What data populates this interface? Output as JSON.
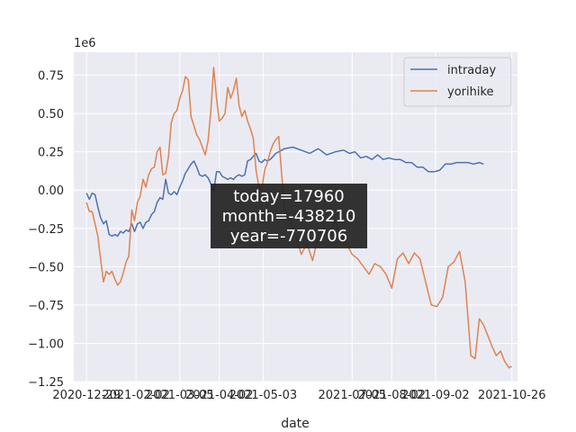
{
  "chart_data": {
    "type": "line",
    "xlabel": "date",
    "ylabel": "",
    "y_multiplier": "1e6",
    "grid": true,
    "legend_placement": "top-right",
    "xlim": [
      "2020-12-20",
      "2021-10-30"
    ],
    "ylim": [
      -1.25,
      0.9
    ],
    "x_ticks": [
      "2020-12-29",
      "2021-02-02",
      "2021-03-05",
      "2021-04-02",
      "2021-05-03",
      "2021-07-05",
      "2021-08-02",
      "2021-09-02",
      "2021-10-26"
    ],
    "x_tick_labels": [
      "2020-12-29",
      "2021-02-02",
      "2021-03-05",
      "2021-04-02",
      "2021-05-03",
      "2021-07-05",
      "2021-08-02",
      "2021-09-02",
      "2021-10-26"
    ],
    "y_ticks": [
      0.75,
      0.5,
      0.25,
      0.0,
      -0.25,
      -0.5,
      -0.75,
      -1.0,
      -1.25
    ],
    "y_tick_labels": [
      "0.75",
      "0.50",
      "0.25",
      "0.00",
      "−0.25",
      "−0.50",
      "−0.75",
      "−1.00",
      "−1.25"
    ],
    "annotation": [
      "today=17960",
      "month=-438210",
      "year=-770706"
    ],
    "series": [
      {
        "name": "intraday",
        "color": "#4c72b0",
        "points": [
          [
            "2020-12-29",
            -0.02
          ],
          [
            "2020-12-31",
            -0.06
          ],
          [
            "2021-01-02",
            -0.02
          ],
          [
            "2021-01-04",
            -0.03
          ],
          [
            "2021-01-06",
            -0.11
          ],
          [
            "2021-01-08",
            -0.18
          ],
          [
            "2021-01-10",
            -0.22
          ],
          [
            "2021-01-12",
            -0.2
          ],
          [
            "2021-01-14",
            -0.29
          ],
          [
            "2021-01-16",
            -0.3
          ],
          [
            "2021-01-18",
            -0.29
          ],
          [
            "2021-01-20",
            -0.3
          ],
          [
            "2021-01-22",
            -0.27
          ],
          [
            "2021-01-24",
            -0.28
          ],
          [
            "2021-01-26",
            -0.26
          ],
          [
            "2021-01-28",
            -0.27
          ],
          [
            "2021-01-30",
            -0.22
          ],
          [
            "2021-02-01",
            -0.27
          ],
          [
            "2021-02-03",
            -0.22
          ],
          [
            "2021-02-05",
            -0.21
          ],
          [
            "2021-02-07",
            -0.25
          ],
          [
            "2021-02-09",
            -0.21
          ],
          [
            "2021-02-11",
            -0.2
          ],
          [
            "2021-02-13",
            -0.16
          ],
          [
            "2021-02-15",
            -0.14
          ],
          [
            "2021-02-17",
            -0.08
          ],
          [
            "2021-02-19",
            -0.05
          ],
          [
            "2021-02-21",
            -0.06
          ],
          [
            "2021-02-23",
            0.07
          ],
          [
            "2021-02-25",
            -0.02
          ],
          [
            "2021-02-27",
            -0.03
          ],
          [
            "2021-03-01",
            -0.01
          ],
          [
            "2021-03-03",
            -0.03
          ],
          [
            "2021-03-05",
            0.02
          ],
          [
            "2021-03-07",
            0.06
          ],
          [
            "2021-03-09",
            0.11
          ],
          [
            "2021-03-11",
            0.14
          ],
          [
            "2021-03-13",
            0.17
          ],
          [
            "2021-03-15",
            0.19
          ],
          [
            "2021-03-17",
            0.15
          ],
          [
            "2021-03-19",
            0.1
          ],
          [
            "2021-03-21",
            0.09
          ],
          [
            "2021-03-23",
            0.1
          ],
          [
            "2021-03-25",
            0.08
          ],
          [
            "2021-03-27",
            0.04
          ],
          [
            "2021-03-29",
            -0.01
          ],
          [
            "2021-03-31",
            0.12
          ],
          [
            "2021-04-02",
            0.12
          ],
          [
            "2021-04-04",
            0.09
          ],
          [
            "2021-04-06",
            0.08
          ],
          [
            "2021-04-08",
            0.07
          ],
          [
            "2021-04-10",
            0.08
          ],
          [
            "2021-04-12",
            0.07
          ],
          [
            "2021-04-14",
            0.09
          ],
          [
            "2021-04-16",
            0.1
          ],
          [
            "2021-04-18",
            0.09
          ],
          [
            "2021-04-20",
            0.1
          ],
          [
            "2021-04-22",
            0.19
          ],
          [
            "2021-04-24",
            0.2
          ],
          [
            "2021-04-26",
            0.22
          ],
          [
            "2021-04-28",
            0.24
          ],
          [
            "2021-04-30",
            0.19
          ],
          [
            "2021-05-02",
            0.18
          ],
          [
            "2021-05-04",
            0.2
          ],
          [
            "2021-05-06",
            0.19
          ],
          [
            "2021-05-08",
            0.2
          ],
          [
            "2021-05-10",
            0.22
          ],
          [
            "2021-05-12",
            0.24
          ],
          [
            "2021-05-14",
            0.25
          ],
          [
            "2021-05-18",
            0.27
          ],
          [
            "2021-05-24",
            0.28
          ],
          [
            "2021-05-30",
            0.26
          ],
          [
            "2021-06-05",
            0.24
          ],
          [
            "2021-06-11",
            0.27
          ],
          [
            "2021-06-17",
            0.23
          ],
          [
            "2021-06-23",
            0.25
          ],
          [
            "2021-06-29",
            0.26
          ],
          [
            "2021-07-03",
            0.24
          ],
          [
            "2021-07-07",
            0.25
          ],
          [
            "2021-07-11",
            0.21
          ],
          [
            "2021-07-15",
            0.22
          ],
          [
            "2021-07-19",
            0.2
          ],
          [
            "2021-07-23",
            0.23
          ],
          [
            "2021-07-27",
            0.2
          ],
          [
            "2021-07-31",
            0.21
          ],
          [
            "2021-08-04",
            0.2
          ],
          [
            "2021-08-08",
            0.2
          ],
          [
            "2021-08-12",
            0.18
          ],
          [
            "2021-08-16",
            0.18
          ],
          [
            "2021-08-20",
            0.15
          ],
          [
            "2021-08-24",
            0.15
          ],
          [
            "2021-08-28",
            0.12
          ],
          [
            "2021-09-01",
            0.12
          ],
          [
            "2021-09-05",
            0.13
          ],
          [
            "2021-09-09",
            0.17
          ],
          [
            "2021-09-13",
            0.17
          ],
          [
            "2021-09-17",
            0.18
          ],
          [
            "2021-09-21",
            0.18
          ],
          [
            "2021-09-25",
            0.18
          ],
          [
            "2021-09-29",
            0.17
          ],
          [
            "2021-10-03",
            0.18
          ],
          [
            "2021-10-06",
            0.17
          ]
        ]
      },
      {
        "name": "yorihike",
        "color": "#dd8452",
        "points": [
          [
            "2020-12-29",
            -0.08
          ],
          [
            "2020-12-31",
            -0.14
          ],
          [
            "2021-01-02",
            -0.14
          ],
          [
            "2021-01-04",
            -0.22
          ],
          [
            "2021-01-06",
            -0.3
          ],
          [
            "2021-01-08",
            -0.45
          ],
          [
            "2021-01-10",
            -0.6
          ],
          [
            "2021-01-12",
            -0.53
          ],
          [
            "2021-01-14",
            -0.55
          ],
          [
            "2021-01-16",
            -0.53
          ],
          [
            "2021-01-18",
            -0.58
          ],
          [
            "2021-01-20",
            -0.62
          ],
          [
            "2021-01-22",
            -0.6
          ],
          [
            "2021-01-24",
            -0.54
          ],
          [
            "2021-01-26",
            -0.47
          ],
          [
            "2021-01-28",
            -0.43
          ],
          [
            "2021-01-30",
            -0.13
          ],
          [
            "2021-02-01",
            -0.2
          ],
          [
            "2021-02-03",
            -0.08
          ],
          [
            "2021-02-05",
            -0.04
          ],
          [
            "2021-02-07",
            0.07
          ],
          [
            "2021-02-09",
            0.02
          ],
          [
            "2021-02-11",
            0.1
          ],
          [
            "2021-02-13",
            0.14
          ],
          [
            "2021-02-15",
            0.15
          ],
          [
            "2021-02-17",
            0.25
          ],
          [
            "2021-02-19",
            0.28
          ],
          [
            "2021-02-21",
            0.1
          ],
          [
            "2021-02-23",
            0.11
          ],
          [
            "2021-02-25",
            0.22
          ],
          [
            "2021-02-27",
            0.44
          ],
          [
            "2021-03-01",
            0.5
          ],
          [
            "2021-03-03",
            0.52
          ],
          [
            "2021-03-05",
            0.6
          ],
          [
            "2021-03-07",
            0.65
          ],
          [
            "2021-03-09",
            0.74
          ],
          [
            "2021-03-11",
            0.72
          ],
          [
            "2021-03-13",
            0.48
          ],
          [
            "2021-03-15",
            0.42
          ],
          [
            "2021-03-17",
            0.36
          ],
          [
            "2021-03-19",
            0.33
          ],
          [
            "2021-03-21",
            0.28
          ],
          [
            "2021-03-23",
            0.23
          ],
          [
            "2021-03-25",
            0.32
          ],
          [
            "2021-03-27",
            0.52
          ],
          [
            "2021-03-29",
            0.8
          ],
          [
            "2021-03-31",
            0.6
          ],
          [
            "2021-04-02",
            0.45
          ],
          [
            "2021-04-04",
            0.47
          ],
          [
            "2021-04-06",
            0.5
          ],
          [
            "2021-04-08",
            0.67
          ],
          [
            "2021-04-10",
            0.6
          ],
          [
            "2021-04-12",
            0.65
          ],
          [
            "2021-04-14",
            0.73
          ],
          [
            "2021-04-16",
            0.55
          ],
          [
            "2021-04-18",
            0.48
          ],
          [
            "2021-04-20",
            0.52
          ],
          [
            "2021-04-22",
            0.45
          ],
          [
            "2021-04-24",
            0.4
          ],
          [
            "2021-04-26",
            0.34
          ],
          [
            "2021-04-28",
            0.13
          ],
          [
            "2021-04-30",
            0.02
          ],
          [
            "2021-05-02",
            0.0
          ],
          [
            "2021-05-04",
            0.13
          ],
          [
            "2021-05-06",
            0.18
          ],
          [
            "2021-05-08",
            0.25
          ],
          [
            "2021-05-10",
            0.3
          ],
          [
            "2021-05-12",
            0.33
          ],
          [
            "2021-05-14",
            0.35
          ],
          [
            "2021-05-18",
            -0.12
          ],
          [
            "2021-05-22",
            -0.2
          ],
          [
            "2021-05-26",
            -0.3
          ],
          [
            "2021-05-30",
            -0.42
          ],
          [
            "2021-06-03",
            -0.35
          ],
          [
            "2021-06-07",
            -0.46
          ],
          [
            "2021-06-11",
            -0.3
          ],
          [
            "2021-06-15",
            -0.25
          ],
          [
            "2021-06-19",
            -0.3
          ],
          [
            "2021-06-23",
            -0.2
          ],
          [
            "2021-06-27",
            -0.3
          ],
          [
            "2021-07-01",
            -0.35
          ],
          [
            "2021-07-05",
            -0.42
          ],
          [
            "2021-07-09",
            -0.45
          ],
          [
            "2021-07-13",
            -0.5
          ],
          [
            "2021-07-17",
            -0.55
          ],
          [
            "2021-07-21",
            -0.48
          ],
          [
            "2021-07-25",
            -0.5
          ],
          [
            "2021-07-29",
            -0.55
          ],
          [
            "2021-08-02",
            -0.64
          ],
          [
            "2021-08-06",
            -0.45
          ],
          [
            "2021-08-10",
            -0.41
          ],
          [
            "2021-08-14",
            -0.48
          ],
          [
            "2021-08-18",
            -0.41
          ],
          [
            "2021-08-22",
            -0.45
          ],
          [
            "2021-08-26",
            -0.6
          ],
          [
            "2021-08-30",
            -0.75
          ],
          [
            "2021-09-03",
            -0.76
          ],
          [
            "2021-09-07",
            -0.7
          ],
          [
            "2021-09-11",
            -0.5
          ],
          [
            "2021-09-15",
            -0.47
          ],
          [
            "2021-09-19",
            -0.4
          ],
          [
            "2021-09-23",
            -0.6
          ],
          [
            "2021-09-27",
            -1.08
          ],
          [
            "2021-09-30",
            -1.1
          ],
          [
            "2021-10-03",
            -0.84
          ],
          [
            "2021-10-06",
            -0.88
          ],
          [
            "2021-10-09",
            -0.95
          ],
          [
            "2021-10-12",
            -1.02
          ],
          [
            "2021-10-15",
            -1.08
          ],
          [
            "2021-10-18",
            -1.05
          ],
          [
            "2021-10-21",
            -1.12
          ],
          [
            "2021-10-24",
            -1.16
          ],
          [
            "2021-10-26",
            -1.15
          ]
        ]
      }
    ]
  }
}
